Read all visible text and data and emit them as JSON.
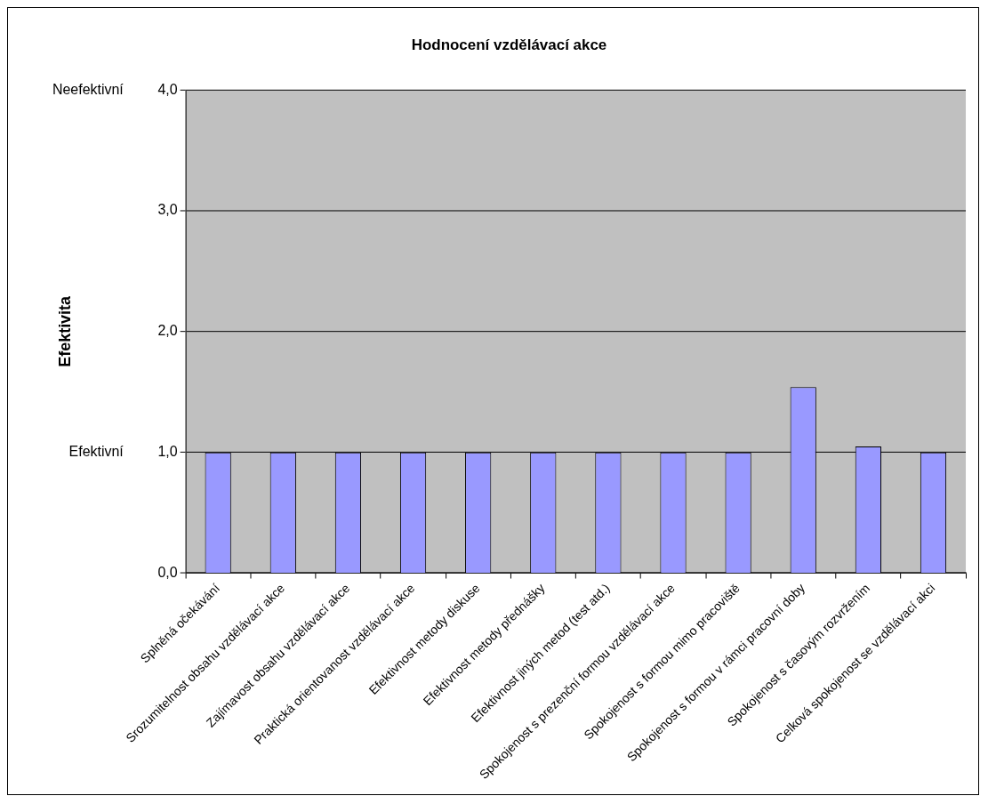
{
  "chart_data": {
    "type": "bar",
    "title": "Hodnocení vzdělávací akce",
    "ylabel": "Efektivita",
    "categories": [
      "Splněná očekávání",
      "Srozumitelnost obsahu vzdělávací akce",
      "Zajímavost obsahu vzdělávací akce",
      "Praktická orientovanost vzdělávací akce",
      "Efektivnost metody diskuse",
      "Efektivnost metody přednášky",
      "Efektivnost jiných metod (test atd.)",
      "Spokojenost s prezenční formou vzdělávací akce",
      "Spokojenost s formou mimo pracoviště",
      "Spokojenost s formou v rámci pracovní doby",
      "Spokojenost s časovým rozvržením",
      "Celková spokojenost se vzdělávací akci"
    ],
    "values": [
      1,
      1,
      1,
      1,
      1,
      1,
      1,
      1,
      1,
      1.54,
      1.05,
      1
    ],
    "color": "#9999ff",
    "ylim": [
      0,
      4
    ],
    "yticks": [
      {
        "value": 0,
        "label": "0,0"
      },
      {
        "value": 1,
        "label": "1,0"
      },
      {
        "value": 2,
        "label": "2,0"
      },
      {
        "value": 3,
        "label": "3,0"
      },
      {
        "value": 4,
        "label": "4,0"
      }
    ],
    "grid": "y",
    "legend": false,
    "annotations": [
      "Neefektivní",
      "Efektivní"
    ]
  }
}
